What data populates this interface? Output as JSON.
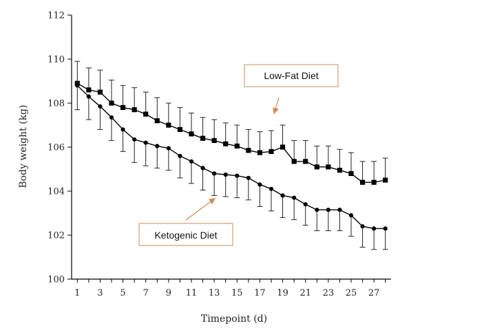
{
  "chart_data": {
    "type": "line",
    "xlabel": "Timepoint (d)",
    "ylabel": "Body weight (kg)",
    "ylim": [
      100,
      112
    ],
    "xlim": [
      0.5,
      28.5
    ],
    "yticks": [
      100,
      102,
      104,
      106,
      108,
      110,
      112
    ],
    "xticks": [
      1,
      3,
      5,
      7,
      9,
      11,
      13,
      15,
      17,
      19,
      21,
      23,
      25,
      27
    ],
    "x": [
      1,
      2,
      3,
      4,
      5,
      6,
      7,
      8,
      9,
      10,
      11,
      12,
      13,
      14,
      15,
      16,
      17,
      18,
      19,
      20,
      21,
      22,
      23,
      24,
      25,
      26,
      27,
      28
    ],
    "grid": false,
    "series": [
      {
        "name": "Low-Fat Diet",
        "marker": "square",
        "values": [
          108.9,
          108.6,
          108.5,
          108.0,
          107.8,
          107.7,
          107.5,
          107.2,
          107.0,
          106.8,
          106.6,
          106.4,
          106.3,
          106.15,
          106.05,
          105.85,
          105.75,
          105.8,
          106.0,
          105.35,
          105.35,
          105.1,
          105.1,
          104.95,
          104.8,
          104.4,
          104.4,
          104.5
        ],
        "error_upper": [
          1.0,
          1.0,
          1.0,
          1.05,
          1.0,
          1.0,
          1.0,
          1.05,
          1.0,
          1.0,
          0.95,
          0.95,
          0.95,
          0.95,
          0.95,
          0.95,
          0.95,
          0.95,
          1.0,
          0.95,
          0.95,
          0.95,
          0.95,
          0.95,
          0.95,
          0.95,
          0.95,
          1.0
        ]
      },
      {
        "name": "Ketogenic Diet",
        "marker": "circle",
        "values": [
          108.8,
          108.3,
          107.85,
          107.35,
          106.8,
          106.35,
          106.2,
          106.05,
          105.95,
          105.6,
          105.35,
          105.05,
          104.8,
          104.75,
          104.7,
          104.6,
          104.3,
          104.1,
          103.8,
          103.7,
          103.4,
          103.15,
          103.15,
          103.15,
          102.9,
          102.4,
          102.3,
          102.3
        ],
        "error_lower": [
          1.1,
          1.05,
          1.05,
          1.05,
          1.0,
          1.05,
          1.05,
          1.0,
          1.0,
          1.0,
          1.0,
          1.0,
          1.0,
          1.0,
          1.0,
          1.0,
          1.0,
          1.0,
          1.0,
          1.0,
          0.95,
          0.95,
          0.95,
          0.95,
          0.95,
          0.95,
          0.95,
          0.95
        ]
      }
    ],
    "annotations": [
      {
        "text": "Low-Fat Diet",
        "series": "Low-Fat Diet",
        "arrow_to": [
          18,
          106.0
        ]
      },
      {
        "text": "Ketogenic Diet",
        "series": "Ketogenic Diet",
        "arrow_to": [
          13.5,
          103.6
        ]
      }
    ],
    "colors": {
      "line": "#000000",
      "callout_border": "#c98c5a",
      "arrow": "#d28a50"
    }
  }
}
